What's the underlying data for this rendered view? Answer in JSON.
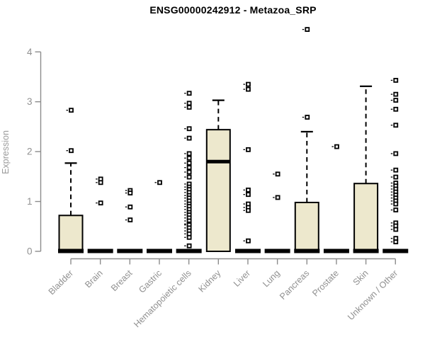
{
  "chart_data": {
    "type": "boxplot",
    "title": "ENSG00000242912 - Metazoa_SRP",
    "ylabel": "Expression",
    "xlabel": "",
    "ylim": [
      0,
      4
    ],
    "yticks": [
      0,
      1,
      2,
      3,
      4
    ],
    "grid": false,
    "legend": "none",
    "categories": [
      "Bladder",
      "Brain",
      "Breast",
      "Gastric",
      "Hematopoietic cells",
      "Kidney",
      "Liver",
      "Lung",
      "Pancreas",
      "Prostate",
      "Skin",
      "Unknown / Other"
    ],
    "series": [
      {
        "category": "Bladder",
        "q1": 0,
        "median": 0,
        "q3": 0.72,
        "whisker_low": 0,
        "whisker_high": 1.77,
        "outliers": [
          2.02,
          2.83
        ]
      },
      {
        "category": "Brain",
        "q1": 0,
        "median": 0,
        "q3": 0,
        "whisker_low": 0,
        "whisker_high": 0,
        "outliers": [
          1.45,
          1.38,
          0.97
        ]
      },
      {
        "category": "Breast",
        "q1": 0,
        "median": 0,
        "q3": 0,
        "whisker_low": 0,
        "whisker_high": 0,
        "outliers": [
          1.22,
          1.17,
          0.89,
          0.63
        ]
      },
      {
        "category": "Gastric",
        "q1": 0,
        "median": 0,
        "q3": 0,
        "whisker_low": 0,
        "whisker_high": 0,
        "outliers": [
          1.38
        ]
      },
      {
        "category": "Hematopoietic cells",
        "q1": 0,
        "median": 0,
        "q3": 0,
        "whisker_low": 0,
        "whisker_high": 0,
        "outliers": [
          3.17,
          2.97,
          2.89,
          2.46,
          2.27,
          1.96,
          1.87,
          1.77,
          1.68,
          1.59,
          1.49,
          1.35,
          1.29,
          1.24,
          1.18,
          1.12,
          1.07,
          1.01,
          0.95,
          0.9,
          0.84,
          0.78,
          0.73,
          0.67,
          0.61,
          0.55,
          0.53,
          0.47,
          0.41,
          0.35,
          0.28,
          0.11
        ]
      },
      {
        "category": "Kidney",
        "q1": 0,
        "median": 1.8,
        "q3": 2.44,
        "whisker_low": 0,
        "whisker_high": 3.03,
        "outliers": []
      },
      {
        "category": "Liver",
        "q1": 0,
        "median": 0,
        "q3": 0,
        "whisker_low": 0,
        "whisker_high": 0,
        "outliers": [
          3.35,
          3.25,
          2.04,
          1.23,
          1.14,
          0.95,
          0.88,
          0.82,
          0.21
        ]
      },
      {
        "category": "Lung",
        "q1": 0,
        "median": 0,
        "q3": 0,
        "whisker_low": 0,
        "whisker_high": 0,
        "outliers": [
          1.55,
          1.08
        ]
      },
      {
        "category": "Pancreas",
        "q1": 0,
        "median": 0,
        "q3": 0.98,
        "whisker_low": 0,
        "whisker_high": 2.4,
        "outliers": [
          2.69,
          4.45
        ]
      },
      {
        "category": "Prostate",
        "q1": 0,
        "median": 0,
        "q3": 0,
        "whisker_low": 0,
        "whisker_high": 0,
        "outliers": [
          2.1
        ]
      },
      {
        "category": "Skin",
        "q1": 0,
        "median": 0,
        "q3": 1.36,
        "whisker_low": 0,
        "whisker_high": 3.31,
        "outliers": []
      },
      {
        "category": "Unknown / Other",
        "q1": 0,
        "median": 0,
        "q3": 0,
        "whisker_low": 0,
        "whisker_high": 0,
        "outliers": [
          3.43,
          3.15,
          3.03,
          2.85,
          2.53,
          1.96,
          1.63,
          1.49,
          1.37,
          1.31,
          1.25,
          1.19,
          1.13,
          1.07,
          1.01,
          0.95,
          0.83,
          0.57,
          0.51,
          0.44,
          0.26,
          0.19
        ]
      }
    ],
    "colors": {
      "box_fill": "#EDE8CD",
      "box_stroke": "#000000",
      "median": "#000000",
      "axis": "#8C8C8C",
      "tick_label": "#909090",
      "title": "#000000"
    }
  }
}
